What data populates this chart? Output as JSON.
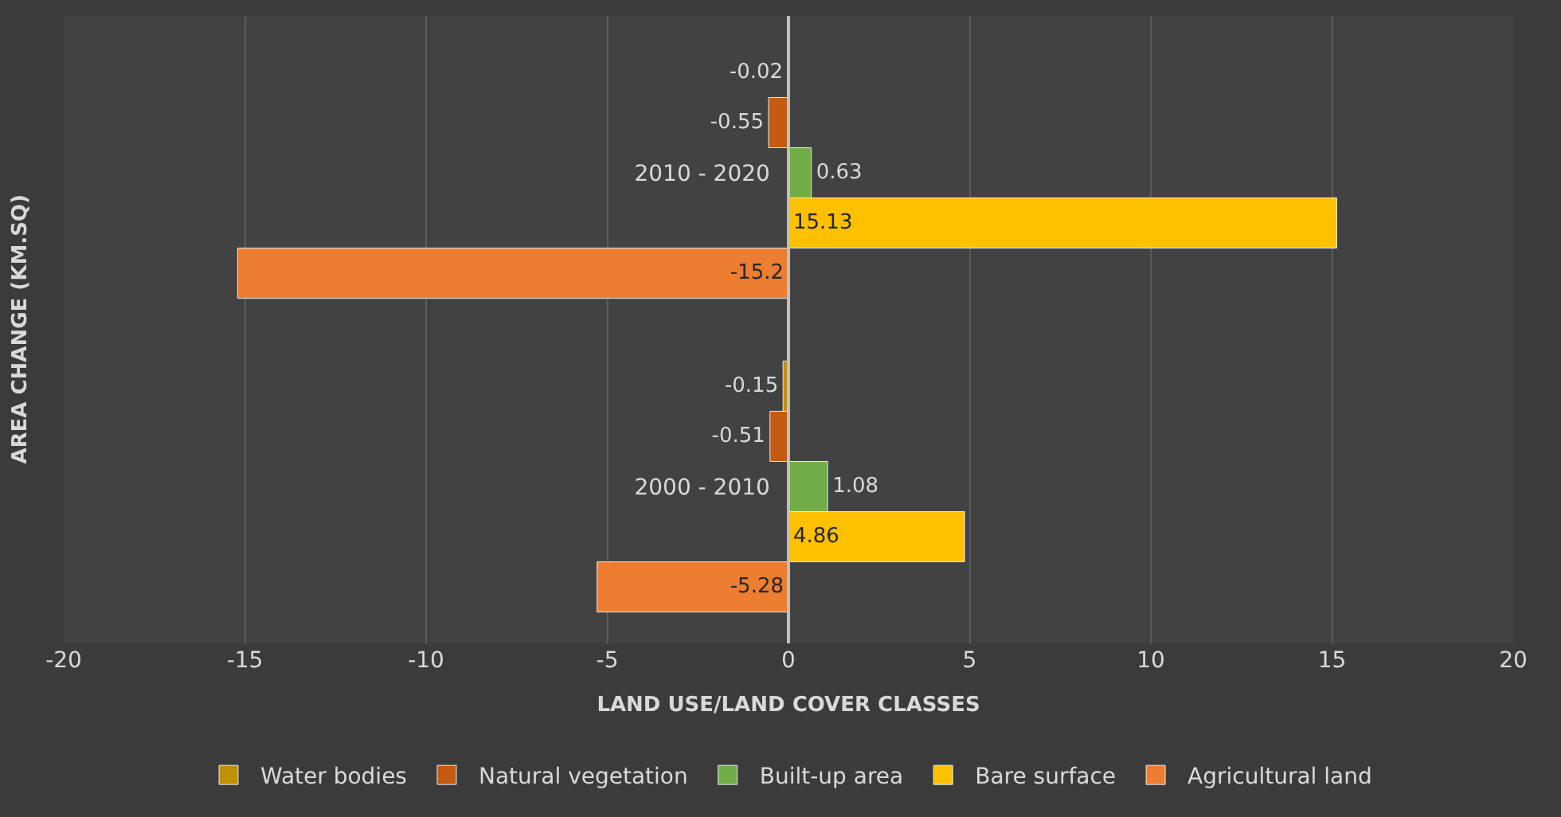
{
  "chart_data": {
    "type": "bar",
    "orientation": "horizontal",
    "xlabel": "LAND USE/LAND COVER CLASSES",
    "ylabel": "AREA CHANGE (KM.SQ)",
    "categories": [
      "2010 - 2020",
      "2000 - 2010"
    ],
    "series": [
      {
        "name": "Water bodies",
        "color": "#bf9000",
        "values": [
          -0.02,
          -0.15
        ]
      },
      {
        "name": "Natural vegetation",
        "color": "#c55a11",
        "values": [
          -0.55,
          -0.51
        ]
      },
      {
        "name": "Built-up area",
        "color": "#70ad47",
        "values": [
          0.63,
          1.08
        ]
      },
      {
        "name": "Bare surface",
        "color": "#ffc000",
        "values": [
          15.13,
          4.86
        ]
      },
      {
        "name": "Agricultural land",
        "color": "#ed7d31",
        "values": [
          -15.2,
          -5.28
        ]
      }
    ],
    "xlim": [
      -20,
      20
    ],
    "xticks": [
      -20,
      -15,
      -10,
      -5,
      0,
      5,
      10,
      15,
      20
    ],
    "grid": "x",
    "legend": "bottom",
    "data_labels": true
  }
}
